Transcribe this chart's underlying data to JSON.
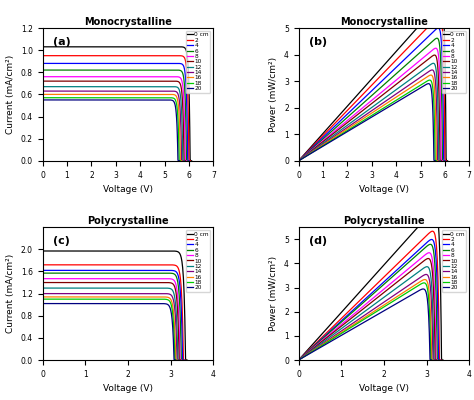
{
  "legend_labels": [
    "0 cm",
    "2",
    "4",
    "6",
    "8",
    "10",
    "12",
    "14",
    "16",
    "18",
    "20"
  ],
  "colors": [
    "#000000",
    "#ff0000",
    "#0000ff",
    "#008000",
    "#ff00ff",
    "#800000",
    "#008080",
    "#800080",
    "#ff8000",
    "#00cc00",
    "#000080"
  ],
  "mono_jv": {
    "Isc": [
      1.03,
      0.95,
      0.88,
      0.82,
      0.76,
      0.72,
      0.67,
      0.63,
      0.6,
      0.57,
      0.55
    ],
    "Voc": [
      6.05,
      6.0,
      5.95,
      5.9,
      5.85,
      5.8,
      5.75,
      5.7,
      5.65,
      5.6,
      5.55
    ],
    "n": [
      1.8,
      1.8,
      1.8,
      1.8,
      1.8,
      1.8,
      1.8,
      1.8,
      1.8,
      1.8,
      1.8
    ]
  },
  "mono_title": "Monocrystalline",
  "mono_xlabel": "Voltage (V)",
  "mono_jv_ylabel": "Current (mA/cm²)",
  "mono_pv_ylabel": "Power (mW/cm²)",
  "mono_xlim": [
    0,
    7
  ],
  "mono_xticks": [
    0,
    1,
    2,
    3,
    4,
    5,
    6,
    7
  ],
  "mono_ylim_j": [
    0,
    1.2
  ],
  "mono_ylim_p": [
    0,
    5
  ],
  "mono_yticks_p": [
    0,
    1,
    2,
    3,
    4,
    5
  ],
  "poly_jv": {
    "Isc": [
      1.97,
      1.72,
      1.62,
      1.57,
      1.47,
      1.4,
      1.3,
      1.2,
      1.14,
      1.1,
      1.02
    ],
    "Voc": [
      3.35,
      3.3,
      3.28,
      3.25,
      3.22,
      3.2,
      3.17,
      3.15,
      3.12,
      3.1,
      3.08
    ],
    "n": [
      1.4,
      1.4,
      1.4,
      1.4,
      1.4,
      1.4,
      1.4,
      1.4,
      1.4,
      1.4,
      1.4
    ]
  },
  "poly_title": "Polycrystalline",
  "poly_xlabel": "Voltage (V)",
  "poly_jv_ylabel": "Current (mA/cm²)",
  "poly_pv_ylabel": "Power (mW/cm²)",
  "poly_xlim": [
    0,
    4
  ],
  "poly_xticks": [
    0,
    1,
    2,
    3,
    4
  ],
  "poly_ylim_j": [
    0,
    2.4
  ],
  "poly_yticks_j": [
    0.0,
    0.4,
    0.8,
    1.2,
    1.6,
    2.0
  ],
  "poly_ylim_p": [
    0,
    5.5
  ],
  "poly_yticks_p": [
    0,
    1,
    2,
    3,
    4,
    5
  ],
  "panel_labels": [
    "(a)",
    "(b)",
    "(c)",
    "(d)"
  ]
}
